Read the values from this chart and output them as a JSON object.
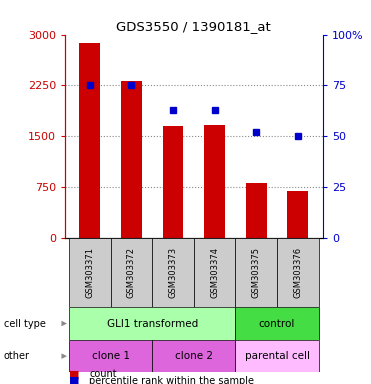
{
  "title": "GDS3550 / 1390181_at",
  "samples": [
    "GSM303371",
    "GSM303372",
    "GSM303373",
    "GSM303374",
    "GSM303375",
    "GSM303376"
  ],
  "counts": [
    2870,
    2320,
    1650,
    1670,
    810,
    700
  ],
  "percentiles": [
    75,
    75,
    63,
    63,
    52,
    50
  ],
  "ylim_left": [
    0,
    3000
  ],
  "ylim_right": [
    0,
    100
  ],
  "yticks_left": [
    0,
    750,
    1500,
    2250,
    3000
  ],
  "ytick_labels_left": [
    "0",
    "750",
    "1500",
    "2250",
    "3000"
  ],
  "yticks_right": [
    0,
    25,
    50,
    75,
    100
  ],
  "ytick_labels_right": [
    "0",
    "25",
    "50",
    "75",
    "100%"
  ],
  "bar_color": "#cc0000",
  "dot_color": "#0000cc",
  "bar_width": 0.5,
  "cell_type_gli_color": "#aaffaa",
  "cell_type_ctrl_color": "#44dd44",
  "clone_color": "#dd66dd",
  "parental_color": "#ffbbff",
  "grid_color": "#888888",
  "axis_color_left": "#cc0000",
  "axis_color_right": "#0000cc",
  "bg_color": "#ffffff",
  "sample_bg": "#cccccc",
  "arrow_color": "#888888"
}
